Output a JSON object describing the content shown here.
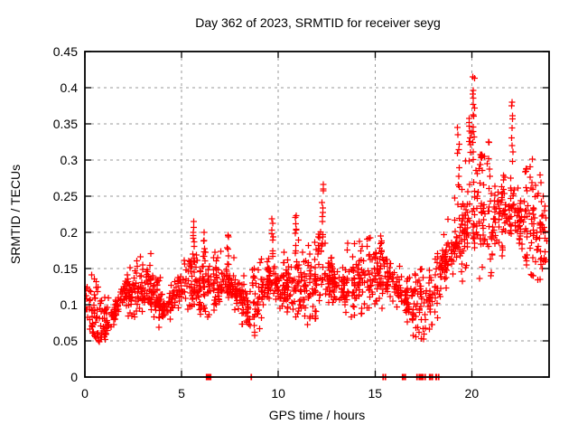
{
  "window": {
    "background": "#ffffff"
  },
  "chart_data": {
    "type": "scatter",
    "title": "Day 362 of 2023, SRMTID for receiver seyg",
    "xlabel": "GPS time / hours",
    "ylabel": "SRMTID / TECUs",
    "xlim": [
      0,
      24
    ],
    "ylim": [
      0,
      0.45
    ],
    "xticks": [
      {
        "v": 0,
        "label": "0"
      },
      {
        "v": 5,
        "label": "5"
      },
      {
        "v": 10,
        "label": "10"
      },
      {
        "v": 15,
        "label": "15"
      },
      {
        "v": 20,
        "label": "20"
      }
    ],
    "yticks": [
      {
        "v": 0,
        "label": "0"
      },
      {
        "v": 0.05,
        "label": "0.05"
      },
      {
        "v": 0.1,
        "label": "0.1"
      },
      {
        "v": 0.15,
        "label": "0.15"
      },
      {
        "v": 0.2,
        "label": "0.2"
      },
      {
        "v": 0.25,
        "label": "0.25"
      },
      {
        "v": 0.3,
        "label": "0.3"
      },
      {
        "v": 0.35,
        "label": "0.35"
      },
      {
        "v": 0.4,
        "label": "0.4"
      },
      {
        "v": 0.45,
        "label": "0.45"
      }
    ],
    "grid": {
      "show": true,
      "color": "#999999",
      "dash": "3,4"
    },
    "border_color": "#000000",
    "marker": {
      "shape": "plus",
      "color": "#ff0000",
      "size": 7
    },
    "legend": null,
    "band": [
      [
        0.0,
        0.075,
        0.155
      ],
      [
        0.5,
        0.055,
        0.135
      ],
      [
        1.0,
        0.04,
        0.115
      ],
      [
        1.5,
        0.05,
        0.125
      ],
      [
        2.0,
        0.085,
        0.165
      ],
      [
        2.5,
        0.08,
        0.155
      ],
      [
        3.0,
        0.09,
        0.17
      ],
      [
        3.5,
        0.08,
        0.175
      ],
      [
        4.0,
        0.06,
        0.14
      ],
      [
        4.5,
        0.07,
        0.15
      ],
      [
        5.0,
        0.09,
        0.175
      ],
      [
        5.5,
        0.09,
        0.185
      ],
      [
        6.0,
        0.085,
        0.175
      ],
      [
        6.5,
        0.08,
        0.17
      ],
      [
        7.0,
        0.09,
        0.175
      ],
      [
        7.5,
        0.08,
        0.185
      ],
      [
        8.0,
        0.07,
        0.16
      ],
      [
        8.5,
        0.05,
        0.145
      ],
      [
        9.0,
        0.06,
        0.155
      ],
      [
        9.5,
        0.09,
        0.185
      ],
      [
        10.0,
        0.08,
        0.18
      ],
      [
        10.5,
        0.07,
        0.185
      ],
      [
        11.0,
        0.08,
        0.195
      ],
      [
        11.5,
        0.07,
        0.18
      ],
      [
        12.0,
        0.08,
        0.195
      ],
      [
        12.5,
        0.09,
        0.21
      ],
      [
        13.0,
        0.07,
        0.185
      ],
      [
        13.5,
        0.07,
        0.19
      ],
      [
        14.0,
        0.08,
        0.195
      ],
      [
        14.5,
        0.09,
        0.19
      ],
      [
        15.0,
        0.1,
        0.195
      ],
      [
        15.5,
        0.09,
        0.195
      ],
      [
        16.0,
        0.08,
        0.18
      ],
      [
        16.5,
        0.07,
        0.165
      ],
      [
        17.0,
        0.055,
        0.145
      ],
      [
        17.5,
        0.05,
        0.15
      ],
      [
        18.0,
        0.07,
        0.175
      ],
      [
        18.5,
        0.09,
        0.23
      ],
      [
        19.0,
        0.1,
        0.25
      ],
      [
        19.5,
        0.12,
        0.29
      ],
      [
        20.0,
        0.12,
        0.36
      ],
      [
        20.5,
        0.13,
        0.34
      ],
      [
        21.0,
        0.13,
        0.32
      ],
      [
        21.5,
        0.14,
        0.33
      ],
      [
        22.0,
        0.14,
        0.35
      ],
      [
        22.5,
        0.13,
        0.3
      ],
      [
        23.0,
        0.14,
        0.31
      ],
      [
        23.5,
        0.13,
        0.28
      ],
      [
        23.95,
        0.15,
        0.27
      ]
    ],
    "spikes": [
      [
        5.6,
        0.215,
        9
      ],
      [
        6.15,
        0.2,
        7
      ],
      [
        7.4,
        0.2,
        7
      ],
      [
        9.7,
        0.22,
        9
      ],
      [
        10.9,
        0.225,
        9
      ],
      [
        12.3,
        0.27,
        11
      ],
      [
        15.3,
        0.195,
        7
      ],
      [
        19.3,
        0.345,
        10
      ],
      [
        19.9,
        0.36,
        9
      ],
      [
        20.1,
        0.415,
        14
      ],
      [
        20.5,
        0.31,
        7
      ],
      [
        22.1,
        0.38,
        9
      ]
    ],
    "zero_marks": [
      [
        6.28,
        6.52
      ],
      [
        8.58,
        8.62
      ],
      [
        15.4,
        15.44
      ],
      [
        15.52,
        15.56
      ],
      [
        16.42,
        16.46
      ],
      [
        16.54,
        16.58
      ],
      [
        17.15,
        17.19
      ],
      [
        17.27,
        17.5
      ],
      [
        17.57,
        17.61
      ],
      [
        17.82,
        17.86
      ],
      [
        17.94,
        17.98
      ],
      [
        18.15,
        18.19
      ],
      [
        18.27,
        18.31
      ]
    ],
    "streaks": 150,
    "seed": 2023362
  }
}
